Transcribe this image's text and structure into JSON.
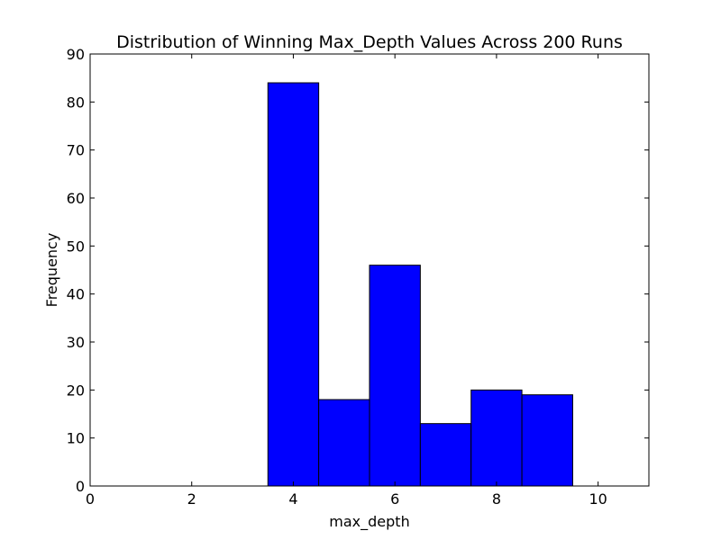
{
  "chart_data": {
    "type": "bar",
    "title": "Distribution of Winning Max_Depth Values Across 200 Runs",
    "xlabel": "max_depth",
    "ylabel": "Frequency",
    "xlim": [
      0,
      11
    ],
    "ylim": [
      0,
      90
    ],
    "xticks": [
      "0",
      "2",
      "4",
      "6",
      "8",
      "10"
    ],
    "yticks": [
      "0",
      "10",
      "20",
      "30",
      "40",
      "50",
      "60",
      "70",
      "80",
      "90"
    ],
    "bins": [
      {
        "start": 0.5,
        "end": 1.5,
        "value": 0
      },
      {
        "start": 1.5,
        "end": 2.5,
        "value": 0
      },
      {
        "start": 2.5,
        "end": 3.5,
        "value": 0
      },
      {
        "start": 3.5,
        "end": 4.5,
        "value": 84
      },
      {
        "start": 4.5,
        "end": 5.5,
        "value": 18
      },
      {
        "start": 5.5,
        "end": 6.5,
        "value": 46
      },
      {
        "start": 6.5,
        "end": 7.5,
        "value": 13
      },
      {
        "start": 7.5,
        "end": 8.5,
        "value": 20
      },
      {
        "start": 8.5,
        "end": 9.5,
        "value": 19
      }
    ],
    "bar_color": "#0000ff",
    "edge_color": "#000000",
    "grid": false
  }
}
